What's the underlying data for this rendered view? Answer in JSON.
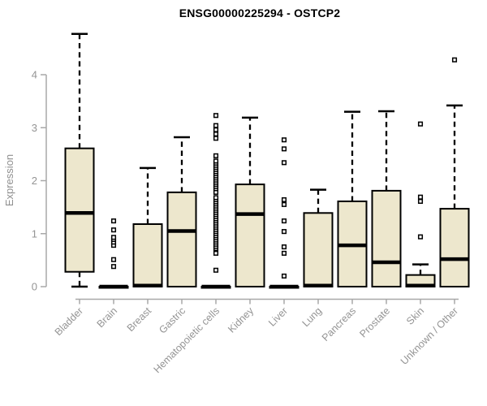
{
  "chart_data": {
    "type": "boxplot",
    "title": "ENSG00000225294 - OSTCP2",
    "ylabel": "Expression",
    "xlabel": "",
    "ylim": [
      0,
      4.8
    ],
    "yticks": [
      0,
      1,
      2,
      3,
      4
    ],
    "grid": false,
    "legend": "none",
    "colors": {
      "box_fill": "#EDE7CD",
      "box_stroke": "#000000",
      "axis_line": "#A8A8A8",
      "axis_text": "#949494",
      "title_text": "#000000"
    },
    "categories": [
      "Bladder",
      "Brain",
      "Breast",
      "Gastric",
      "Hematopoietic cells",
      "Kidney",
      "Liver",
      "Lung",
      "Pancreas",
      "Prostate",
      "Skin",
      "Unknown / Other"
    ],
    "series": [
      {
        "name": "Bladder",
        "low": 0,
        "q1": 0.28,
        "median": 1.39,
        "q3": 2.61,
        "high": 4.77,
        "outliers": []
      },
      {
        "name": "Brain",
        "low": 0,
        "q1": 0,
        "median": 0,
        "q3": 0,
        "high": 0,
        "outliers": [
          0.38,
          0.51,
          0.78,
          0.84,
          0.89,
          0.93,
          1.07,
          1.24
        ]
      },
      {
        "name": "Breast",
        "low": 0,
        "q1": 0,
        "median": 0.02,
        "q3": 1.18,
        "high": 2.24,
        "outliers": []
      },
      {
        "name": "Gastric",
        "low": 0,
        "q1": 0,
        "median": 1.05,
        "q3": 1.78,
        "high": 2.82,
        "outliers": []
      },
      {
        "name": "Hematopoietic cells",
        "low": 0,
        "q1": 0,
        "median": 0,
        "q3": 0,
        "high": 0,
        "outliers": [
          0.31,
          0.63,
          0.72,
          0.76,
          0.8,
          0.84,
          0.88,
          0.92,
          0.96,
          1.0,
          1.04,
          1.08,
          1.12,
          1.16,
          1.2,
          1.24,
          1.28,
          1.32,
          1.36,
          1.4,
          1.44,
          1.48,
          1.52,
          1.56,
          1.6,
          1.64,
          1.68,
          1.78,
          1.85,
          1.89,
          1.93,
          1.97,
          2.01,
          2.05,
          2.09,
          2.13,
          2.17,
          2.21,
          2.25,
          2.29,
          2.33,
          2.37,
          2.47,
          2.8,
          2.88,
          2.96,
          3.04,
          3.23
        ]
      },
      {
        "name": "Kidney",
        "low": 0,
        "q1": 0,
        "median": 1.37,
        "q3": 1.93,
        "high": 3.19,
        "outliers": []
      },
      {
        "name": "Liver",
        "low": 0,
        "q1": 0,
        "median": 0,
        "q3": 0,
        "high": 0,
        "outliers": [
          0.2,
          0.63,
          0.75,
          1.04,
          1.24,
          1.55,
          1.64,
          2.34,
          2.6,
          2.77
        ]
      },
      {
        "name": "Lung",
        "low": 0,
        "q1": 0,
        "median": 0.02,
        "q3": 1.39,
        "high": 1.83,
        "outliers": []
      },
      {
        "name": "Pancreas",
        "low": 0,
        "q1": 0,
        "median": 0.78,
        "q3": 1.61,
        "high": 3.3,
        "outliers": []
      },
      {
        "name": "Prostate",
        "low": 0,
        "q1": 0,
        "median": 0.46,
        "q3": 1.81,
        "high": 3.31,
        "outliers": []
      },
      {
        "name": "Skin",
        "low": 0,
        "q1": 0,
        "median": 0.02,
        "q3": 0.22,
        "high": 0.42,
        "outliers": [
          0.94,
          1.61,
          1.69,
          3.07
        ]
      },
      {
        "name": "Unknown / Other",
        "low": 0,
        "q1": 0,
        "median": 0.52,
        "q3": 1.47,
        "high": 3.42,
        "outliers": [
          4.28
        ]
      }
    ]
  }
}
